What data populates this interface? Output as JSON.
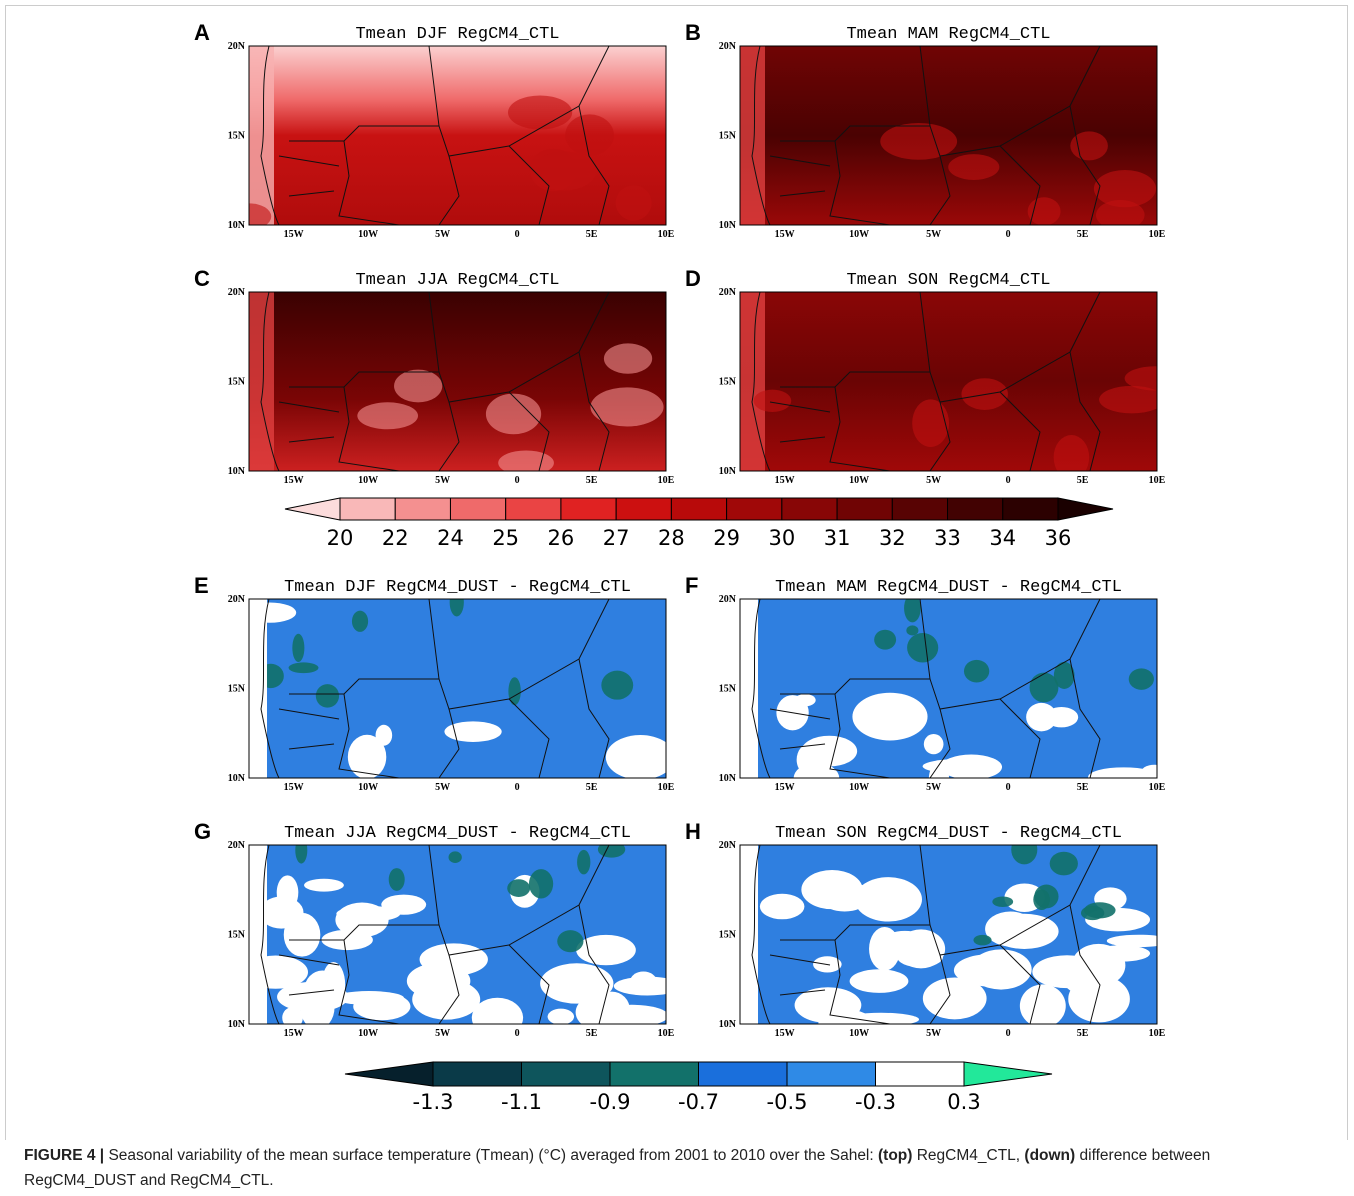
{
  "panels": [
    {
      "letter": "A",
      "title": "Tmean DJF RegCM4_CTL"
    },
    {
      "letter": "B",
      "title": "Tmean MAM RegCM4_CTL"
    },
    {
      "letter": "C",
      "title": "Tmean JJA RegCM4_CTL"
    },
    {
      "letter": "D",
      "title": "Tmean SON RegCM4_CTL"
    },
    {
      "letter": "E",
      "title": "Tmean DJF RegCM4_DUST - RegCM4_CTL"
    },
    {
      "letter": "F",
      "title": "Tmean MAM RegCM4_DUST - RegCM4_CTL"
    },
    {
      "letter": "G",
      "title": "Tmean JJA RegCM4_DUST - RegCM4_CTL"
    },
    {
      "letter": "H",
      "title": "Tmean SON RegCM4_DUST - RegCM4_CTL"
    }
  ],
  "lat_labels": [
    "20N",
    "15N",
    "10N"
  ],
  "lon_labels": [
    "15W",
    "10W",
    "5W",
    "0",
    "5E",
    "10E"
  ],
  "colorbars": [
    {
      "labels": [
        "20",
        "22",
        "24",
        "25",
        "26",
        "27",
        "28",
        "29",
        "30",
        "31",
        "32",
        "33",
        "34",
        "36"
      ],
      "colors": [
        "#fcdcdc",
        "#f9b8b8",
        "#f49090",
        "#ef6a6a",
        "#ea4444",
        "#e02222",
        "#cc1010",
        "#b80a0a",
        "#a00808",
        "#880606",
        "#700404",
        "#580303",
        "#420202",
        "#2c0101",
        "#1a0000"
      ]
    },
    {
      "labels": [
        "-1.3",
        "-1.1",
        "-0.9",
        "-0.7",
        "-0.5",
        "-0.3",
        "0.3"
      ],
      "colors": [
        "#06202c",
        "#0a3a48",
        "#0e555c",
        "#12716a",
        "#1a6fdc",
        "#2f8ae6",
        "#ffffff",
        "#22e89a"
      ]
    }
  ],
  "caption": [
    {
      "text": "FIGURE 4 |",
      "bold": true
    },
    {
      "text": " Seasonal variability of the mean surface temperature (Tmean) (°C) averaged from 2001 to 2010 over the Sahel: ",
      "bold": false
    },
    {
      "text": "(top)",
      "bold": true
    },
    {
      "text": " RegCM4_CTL, ",
      "bold": false
    },
    {
      "text": "(down)",
      "bold": true
    },
    {
      "text": " difference between RegCM4_DUST and RegCM4_CTL.",
      "bold": false
    }
  ]
}
